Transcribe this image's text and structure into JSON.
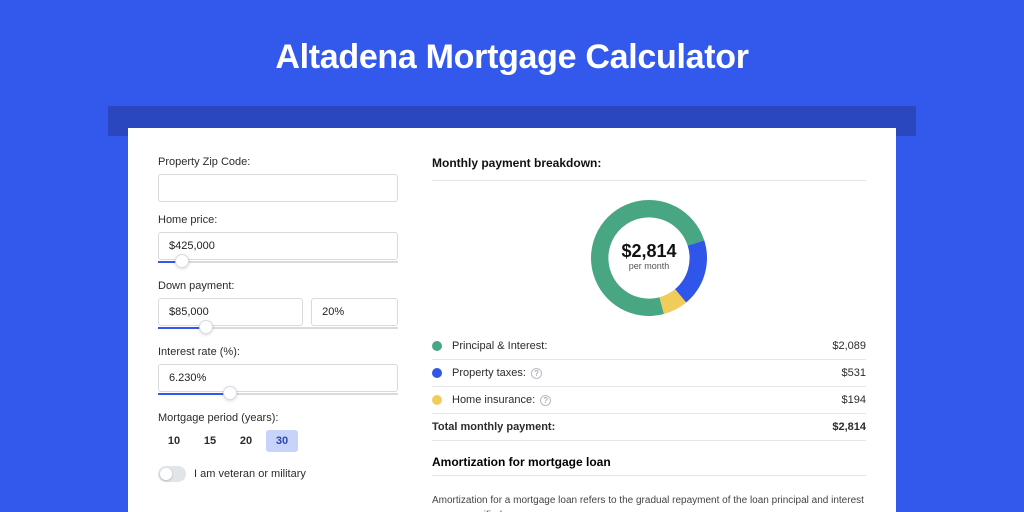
{
  "page": {
    "title": "Altadena Mortgage Calculator",
    "bg_color": "#3359ec",
    "shadow_color": "#2a47c0",
    "card_bg": "#ffffff"
  },
  "form": {
    "zip": {
      "label": "Property Zip Code:",
      "value": ""
    },
    "home_price": {
      "label": "Home price:",
      "value": "$425,000",
      "slider_percent": 10
    },
    "down_payment": {
      "label": "Down payment:",
      "amount": "$85,000",
      "percent": "20%",
      "slider_percent": 20
    },
    "interest_rate": {
      "label": "Interest rate (%):",
      "value": "6.230%",
      "slider_percent": 30
    },
    "period": {
      "label": "Mortgage period (years):",
      "options": [
        "10",
        "15",
        "20",
        "30"
      ],
      "selected": "30"
    },
    "veteran": {
      "label": "I am veteran or military",
      "checked": false
    }
  },
  "breakdown": {
    "title": "Monthly payment breakdown:",
    "donut": {
      "center_amount": "$2,814",
      "center_sub": "per month",
      "slices": [
        {
          "name": "principal_interest",
          "value": 2089,
          "color": "#49a683"
        },
        {
          "name": "property_taxes",
          "value": 531,
          "color": "#2f56e8"
        },
        {
          "name": "home_insurance",
          "value": 194,
          "color": "#f1cc5b"
        }
      ],
      "thickness_ratio": 0.3,
      "start_angle_deg": 75
    },
    "rows": [
      {
        "label": "Principal & Interest:",
        "value": "$2,089",
        "color": "#49a683",
        "info": false
      },
      {
        "label": "Property taxes:",
        "value": "$531",
        "color": "#2f56e8",
        "info": true
      },
      {
        "label": "Home insurance:",
        "value": "$194",
        "color": "#f1cc5b",
        "info": true
      }
    ],
    "total": {
      "label": "Total monthly payment:",
      "value": "$2,814"
    }
  },
  "amortization": {
    "title": "Amortization for mortgage loan",
    "text": "Amortization for a mortgage loan refers to the gradual repayment of the loan principal and interest over a specified"
  }
}
